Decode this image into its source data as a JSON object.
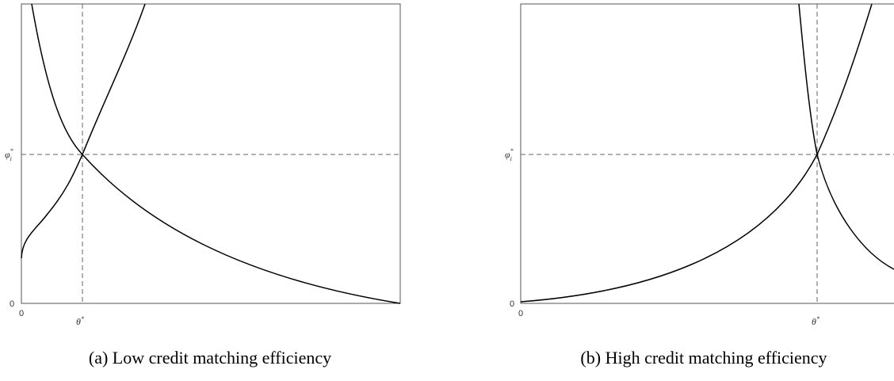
{
  "panels": [
    {
      "caption": "(a) Low credit matching efficiency",
      "x_origin": "0",
      "y_origin": "0",
      "x_marker": {
        "symbol": "θ",
        "superscript": "*"
      },
      "y_marker": {
        "symbol": "φ",
        "subscript": "i",
        "superscript": "*"
      }
    },
    {
      "caption": "(b) High credit matching efficiency",
      "x_origin": "0",
      "y_origin": "0",
      "x_marker": {
        "symbol": "θ",
        "superscript": "*"
      },
      "y_marker": {
        "symbol": "φ",
        "subscript": "i",
        "superscript": "*"
      }
    }
  ]
}
